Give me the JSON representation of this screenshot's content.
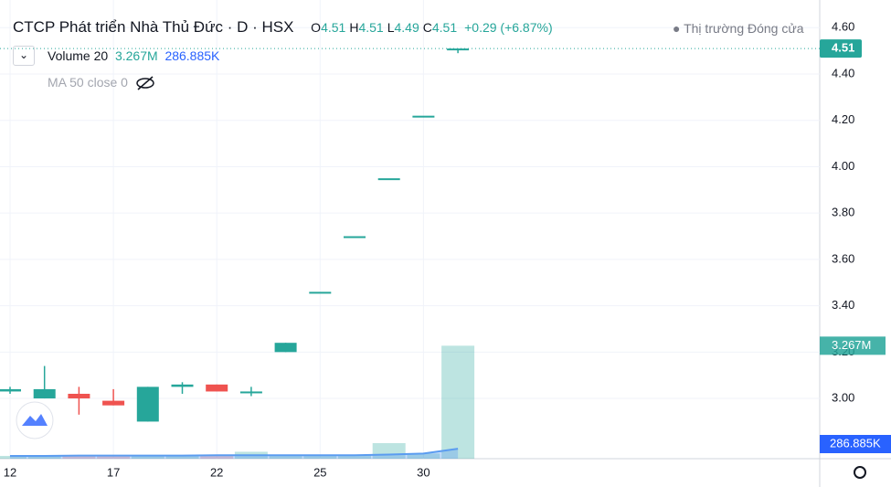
{
  "header": {
    "title": "CTCP Phát triển Nhà Thủ Đức",
    "interval": "D",
    "exchange": "HSX",
    "ohlc": [
      {
        "key": "O",
        "value": "4.51"
      },
      {
        "key": "H",
        "value": "4.51"
      },
      {
        "key": "L",
        "value": "4.49"
      },
      {
        "key": "C",
        "value": "4.51"
      }
    ],
    "change": "+0.29 (+6.87%)",
    "market_status": "Thị trường Đóng cửa"
  },
  "legend": {
    "volume": {
      "name": "Volume 20",
      "value": "3.267M",
      "ma": "286.885K"
    },
    "ma": "MA 50 close 0"
  },
  "chart_data": {
    "type": "candlestick",
    "categories": [
      "12",
      null,
      null,
      "17",
      null,
      null,
      "22",
      null,
      null,
      "25",
      null,
      null,
      "30",
      null
    ],
    "open": [
      3.03,
      3.0,
      3.02,
      2.99,
      2.9,
      3.05,
      3.06,
      3.03,
      3.2,
      3.46,
      3.7,
      3.95,
      4.22,
      4.51
    ],
    "high": [
      3.05,
      3.14,
      3.05,
      3.04,
      3.05,
      3.07,
      3.06,
      3.05,
      3.24,
      3.46,
      3.7,
      3.95,
      4.22,
      4.51
    ],
    "low": [
      3.02,
      3.0,
      2.93,
      2.97,
      2.9,
      3.02,
      3.03,
      3.01,
      3.2,
      3.46,
      3.7,
      3.95,
      4.22,
      4.49
    ],
    "close": [
      3.04,
      3.04,
      3.0,
      2.97,
      3.05,
      3.06,
      3.03,
      3.03,
      3.24,
      3.46,
      3.7,
      3.95,
      4.22,
      4.51
    ],
    "up_color": "#26a69a",
    "down_color": "#ef5350",
    "ylim": [
      2.74,
      4.68
    ],
    "yticks": [
      {
        "value": 3.0,
        "label": "3.00"
      },
      {
        "value": 3.2,
        "label": "3.20"
      },
      {
        "value": 3.4,
        "label": "3.40"
      },
      {
        "value": 3.6,
        "label": "3.60"
      },
      {
        "value": 3.8,
        "label": "3.80"
      },
      {
        "value": 4.0,
        "label": "4.00"
      },
      {
        "value": 4.2,
        "label": "4.20"
      },
      {
        "value": 4.4,
        "label": "4.40"
      },
      {
        "value": 4.6,
        "label": "4.60"
      }
    ],
    "volume": {
      "values": [
        0.08,
        0.1,
        0.1,
        0.1,
        0.1,
        0.1,
        0.1,
        0.2,
        0.1,
        0.1,
        0.1,
        0.45,
        0.15,
        3.267
      ],
      "value_labels": [
        null,
        null,
        null,
        null,
        null,
        null,
        null,
        null,
        null,
        null,
        null,
        null,
        null,
        "3.267M"
      ],
      "axis": "y2"
    },
    "volume_ma": {
      "values": [
        0.08,
        0.08,
        0.09,
        0.09,
        0.09,
        0.09,
        0.1,
        0.1,
        0.1,
        0.1,
        0.1,
        0.12,
        0.15,
        0.286885
      ],
      "last_label": "286.885K",
      "color": "#5b9cf0",
      "axis": "y2"
    },
    "y2lim": [
      0,
      13
    ],
    "grid": true
  }
}
